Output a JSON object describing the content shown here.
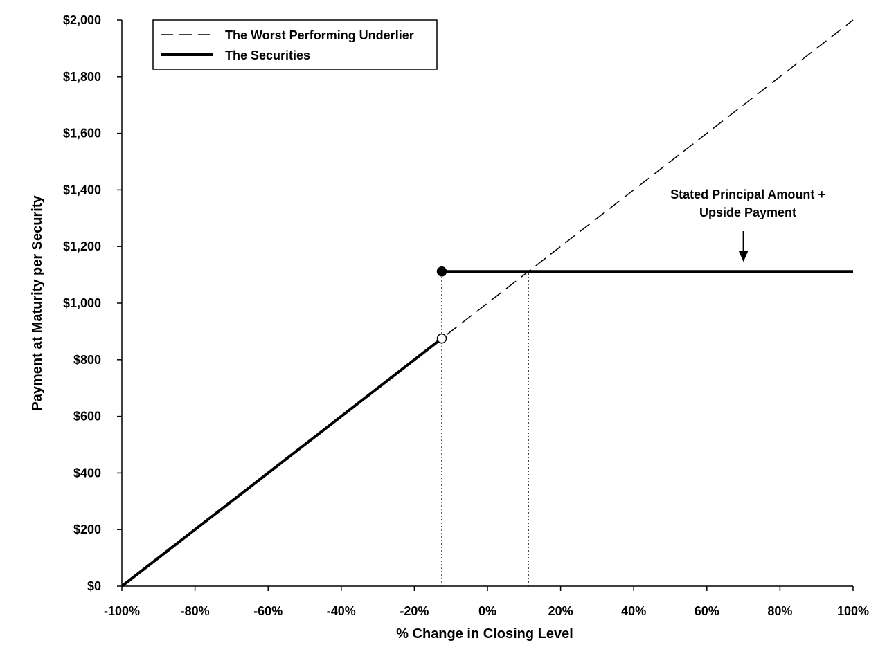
{
  "chart_data": {
    "type": "line",
    "title": "",
    "xlabel": "% Change in Closing Level",
    "ylabel": "Payment at Maturity per Security",
    "xlim": [
      -100,
      100
    ],
    "ylim": [
      0,
      2000
    ],
    "x_ticks": [
      -100,
      -80,
      -60,
      -40,
      -20,
      0,
      20,
      40,
      60,
      80,
      100
    ],
    "x_tick_labels": [
      "-100%",
      "-80%",
      "-60%",
      "-40%",
      "-20%",
      "0%",
      "20%",
      "40%",
      "60%",
      "80%",
      "100%"
    ],
    "y_ticks": [
      0,
      200,
      400,
      600,
      800,
      1000,
      1200,
      1400,
      1600,
      1800,
      2000
    ],
    "y_tick_labels": [
      "$0",
      "$200",
      "$400",
      "$600",
      "$800",
      "$1,000",
      "$1,200",
      "$1,400",
      "$1,600",
      "$1,800",
      "$2,000"
    ],
    "grid": false,
    "legend_position": "top-left",
    "series": [
      {
        "name": "The Worst Performing Underlier",
        "style": "dashed",
        "color": "#000000",
        "x": [
          -100,
          100
        ],
        "y": [
          0,
          2000
        ]
      },
      {
        "name": "The Securities",
        "style": "solid-thick",
        "color": "#000000",
        "segments": [
          {
            "x": [
              -100,
              -12.5
            ],
            "y": [
              0,
              875
            ]
          },
          {
            "x": [
              -12.5,
              100
            ],
            "y": [
              1112,
              1112
            ]
          }
        ]
      }
    ],
    "markers": [
      {
        "x": -12.5,
        "y": 1112,
        "fill": "filled"
      },
      {
        "x": -12.5,
        "y": 875,
        "fill": "open"
      }
    ],
    "reference_lines": [
      {
        "x": -12.5,
        "y_from": 0,
        "y_to": 1112,
        "style": "dotted"
      },
      {
        "x": 11.2,
        "y_from": 0,
        "y_to": 1112,
        "style": "dotted"
      }
    ],
    "annotations": [
      {
        "lines": [
          "Stated Principal Amount +",
          "Upside Payment"
        ],
        "arrow_x": 70,
        "arrow_y": 1112
      }
    ]
  }
}
